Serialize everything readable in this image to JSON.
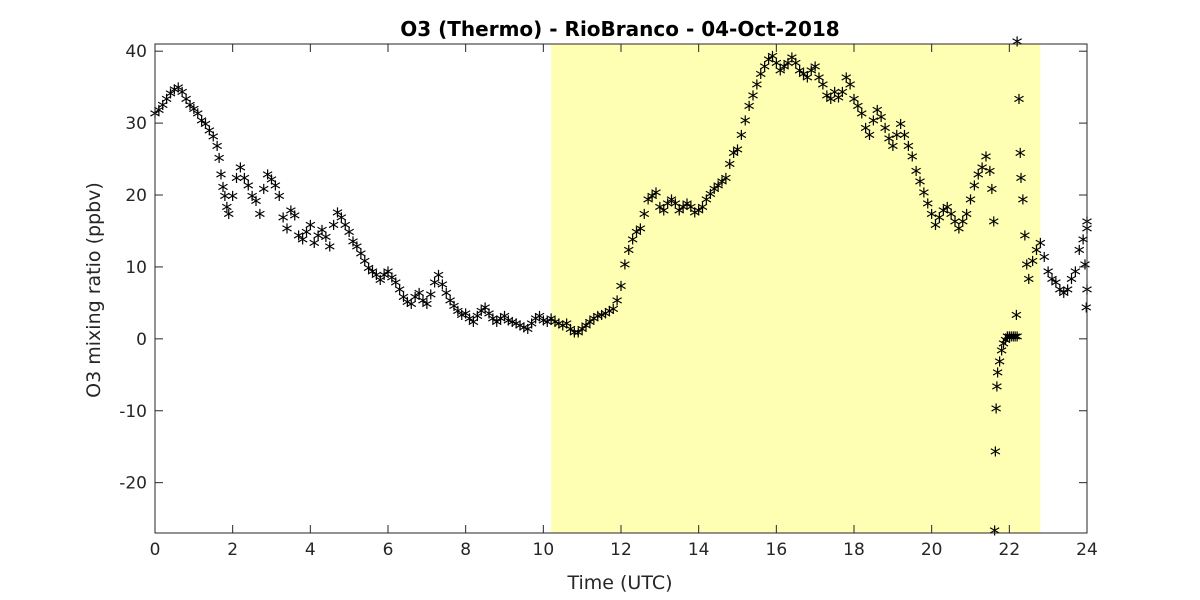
{
  "chart_data": {
    "type": "scatter",
    "title": "O3 (Thermo) - RioBranco - 04-Oct-2018",
    "xlabel": "Time (UTC)",
    "ylabel": "O3 mixing ratio (ppbv)",
    "xlim": [
      0,
      24
    ],
    "ylim": [
      -27,
      41
    ],
    "xticks": [
      0,
      2,
      4,
      6,
      8,
      10,
      12,
      14,
      16,
      18,
      20,
      22,
      24
    ],
    "yticks": [
      -20,
      -10,
      0,
      10,
      20,
      30,
      40
    ],
    "x_tick_labels": [
      "0",
      "2",
      "4",
      "6",
      "8",
      "10",
      "12",
      "14",
      "16",
      "18",
      "20",
      "22",
      "24"
    ],
    "y_tick_labels": [
      "-20",
      "-10",
      "0",
      "10",
      "20",
      "30",
      "40"
    ],
    "grid": false,
    "marker": "*",
    "highlight_span": {
      "x": [
        10.2,
        22.8
      ],
      "color": "#ffffb3"
    },
    "marker_color": "#000000",
    "points": [
      [
        0.0,
        31.0
      ],
      [
        0.1,
        31.5
      ],
      [
        0.2,
        32.2
      ],
      [
        0.3,
        33.0
      ],
      [
        0.4,
        33.8
      ],
      [
        0.5,
        34.3
      ],
      [
        0.6,
        34.6
      ],
      [
        0.7,
        34.0
      ],
      [
        0.8,
        33.0
      ],
      [
        0.9,
        32.2
      ],
      [
        1.0,
        31.6
      ],
      [
        1.1,
        31.0
      ],
      [
        1.2,
        30.0
      ],
      [
        1.3,
        29.5
      ],
      [
        1.4,
        28.6
      ],
      [
        1.5,
        27.8
      ],
      [
        1.6,
        26.5
      ],
      [
        1.65,
        24.8
      ],
      [
        1.7,
        22.5
      ],
      [
        1.75,
        20.8
      ],
      [
        1.8,
        19.5
      ],
      [
        1.85,
        18.0
      ],
      [
        1.9,
        17.0
      ],
      [
        2.0,
        19.5
      ],
      [
        2.1,
        22.0
      ],
      [
        2.2,
        23.5
      ],
      [
        2.3,
        22.0
      ],
      [
        2.4,
        21.0
      ],
      [
        2.5,
        19.5
      ],
      [
        2.6,
        18.8
      ],
      [
        2.7,
        17.0
      ],
      [
        2.8,
        20.5
      ],
      [
        2.9,
        22.5
      ],
      [
        3.0,
        21.8
      ],
      [
        3.1,
        21.0
      ],
      [
        3.2,
        19.5
      ],
      [
        3.3,
        16.5
      ],
      [
        3.4,
        15.0
      ],
      [
        3.5,
        17.5
      ],
      [
        3.6,
        16.8
      ],
      [
        3.7,
        14.0
      ],
      [
        3.8,
        13.5
      ],
      [
        3.9,
        14.5
      ],
      [
        4.0,
        15.5
      ],
      [
        4.1,
        13.0
      ],
      [
        4.2,
        14.0
      ],
      [
        4.3,
        14.8
      ],
      [
        4.4,
        13.8
      ],
      [
        4.5,
        12.5
      ],
      [
        4.6,
        15.5
      ],
      [
        4.7,
        17.2
      ],
      [
        4.8,
        16.5
      ],
      [
        4.9,
        15.5
      ],
      [
        5.0,
        14.5
      ],
      [
        5.1,
        13.2
      ],
      [
        5.2,
        12.5
      ],
      [
        5.3,
        11.5
      ],
      [
        5.4,
        10.5
      ],
      [
        5.5,
        9.5
      ],
      [
        5.6,
        9.0
      ],
      [
        5.7,
        8.5
      ],
      [
        5.8,
        7.8
      ],
      [
        5.9,
        8.5
      ],
      [
        6.0,
        9.0
      ],
      [
        6.1,
        8.2
      ],
      [
        6.2,
        7.5
      ],
      [
        6.3,
        6.5
      ],
      [
        6.4,
        5.5
      ],
      [
        6.5,
        4.8
      ],
      [
        6.6,
        4.5
      ],
      [
        6.7,
        5.5
      ],
      [
        6.8,
        6.0
      ],
      [
        6.9,
        5.0
      ],
      [
        7.0,
        4.5
      ],
      [
        7.1,
        5.8
      ],
      [
        7.2,
        7.5
      ],
      [
        7.3,
        8.5
      ],
      [
        7.4,
        7.2
      ],
      [
        7.5,
        6.0
      ],
      [
        7.6,
        5.0
      ],
      [
        7.7,
        4.2
      ],
      [
        7.8,
        3.5
      ],
      [
        7.9,
        3.0
      ],
      [
        8.0,
        3.2
      ],
      [
        8.1,
        2.5
      ],
      [
        8.2,
        2.0
      ],
      [
        8.3,
        2.8
      ],
      [
        8.4,
        3.5
      ],
      [
        8.5,
        4.0
      ],
      [
        8.6,
        3.2
      ],
      [
        8.7,
        2.5
      ],
      [
        8.8,
        2.0
      ],
      [
        8.9,
        2.5
      ],
      [
        9.0,
        2.8
      ],
      [
        9.1,
        2.2
      ],
      [
        9.2,
        2.0
      ],
      [
        9.3,
        1.8
      ],
      [
        9.4,
        1.5
      ],
      [
        9.5,
        1.2
      ],
      [
        9.6,
        1.0
      ],
      [
        9.7,
        1.8
      ],
      [
        9.8,
        2.5
      ],
      [
        9.9,
        2.8
      ],
      [
        10.0,
        2.2
      ],
      [
        10.1,
        2.0
      ],
      [
        10.2,
        2.5
      ],
      [
        10.3,
        2.0
      ],
      [
        10.4,
        1.8
      ],
      [
        10.5,
        1.5
      ],
      [
        10.6,
        1.8
      ],
      [
        10.7,
        1.0
      ],
      [
        10.8,
        0.5
      ],
      [
        10.9,
        0.5
      ],
      [
        11.0,
        1.0
      ],
      [
        11.1,
        1.5
      ],
      [
        11.2,
        2.0
      ],
      [
        11.3,
        2.5
      ],
      [
        11.4,
        2.8
      ],
      [
        11.5,
        3.0
      ],
      [
        11.6,
        3.2
      ],
      [
        11.7,
        3.5
      ],
      [
        11.8,
        3.8
      ],
      [
        11.9,
        5.0
      ],
      [
        12.0,
        7.0
      ],
      [
        12.1,
        10.0
      ],
      [
        12.2,
        12.0
      ],
      [
        12.3,
        13.5
      ],
      [
        12.4,
        14.5
      ],
      [
        12.5,
        15.0
      ],
      [
        12.6,
        17.0
      ],
      [
        12.7,
        19.0
      ],
      [
        12.8,
        19.5
      ],
      [
        12.9,
        20.0
      ],
      [
        13.0,
        18.0
      ],
      [
        13.1,
        17.5
      ],
      [
        13.2,
        18.5
      ],
      [
        13.3,
        19.0
      ],
      [
        13.4,
        18.5
      ],
      [
        13.5,
        17.5
      ],
      [
        13.6,
        18.0
      ],
      [
        13.7,
        18.5
      ],
      [
        13.8,
        18.0
      ],
      [
        13.9,
        17.2
      ],
      [
        14.0,
        17.5
      ],
      [
        14.1,
        18.0
      ],
      [
        14.2,
        19.0
      ],
      [
        14.3,
        19.8
      ],
      [
        14.4,
        20.5
      ],
      [
        14.5,
        21.0
      ],
      [
        14.6,
        21.5
      ],
      [
        14.7,
        22.0
      ],
      [
        14.8,
        24.0
      ],
      [
        14.9,
        25.5
      ],
      [
        15.0,
        26.0
      ],
      [
        15.1,
        28.0
      ],
      [
        15.2,
        30.0
      ],
      [
        15.3,
        32.0
      ],
      [
        15.4,
        33.5
      ],
      [
        15.5,
        35.0
      ],
      [
        15.6,
        36.5
      ],
      [
        15.7,
        37.5
      ],
      [
        15.8,
        38.5
      ],
      [
        15.9,
        39.0
      ],
      [
        16.0,
        38.0
      ],
      [
        16.1,
        37.0
      ],
      [
        16.2,
        37.5
      ],
      [
        16.3,
        38.0
      ],
      [
        16.4,
        38.8
      ],
      [
        16.5,
        38.0
      ],
      [
        16.6,
        37.0
      ],
      [
        16.7,
        36.5
      ],
      [
        16.8,
        36.0
      ],
      [
        16.9,
        37.0
      ],
      [
        17.0,
        37.5
      ],
      [
        17.1,
        36.0
      ],
      [
        17.2,
        35.0
      ],
      [
        17.3,
        33.5
      ],
      [
        17.4,
        33.0
      ],
      [
        17.5,
        34.0
      ],
      [
        17.6,
        33.2
      ],
      [
        17.7,
        34.0
      ],
      [
        17.8,
        36.0
      ],
      [
        17.9,
        35.0
      ],
      [
        18.0,
        33.0
      ],
      [
        18.1,
        32.0
      ],
      [
        18.2,
        31.0
      ],
      [
        18.3,
        29.0
      ],
      [
        18.4,
        28.0
      ],
      [
        18.5,
        30.0
      ],
      [
        18.6,
        31.5
      ],
      [
        18.7,
        30.5
      ],
      [
        18.8,
        29.0
      ],
      [
        18.9,
        27.5
      ],
      [
        19.0,
        26.5
      ],
      [
        19.1,
        28.0
      ],
      [
        19.2,
        29.5
      ],
      [
        19.3,
        28.0
      ],
      [
        19.4,
        26.5
      ],
      [
        19.5,
        25.0
      ],
      [
        19.6,
        23.0
      ],
      [
        19.7,
        21.5
      ],
      [
        19.8,
        20.0
      ],
      [
        19.9,
        18.5
      ],
      [
        20.0,
        17.0
      ],
      [
        20.1,
        15.5
      ],
      [
        20.2,
        16.5
      ],
      [
        20.3,
        17.5
      ],
      [
        20.4,
        18.0
      ],
      [
        20.5,
        17.0
      ],
      [
        20.6,
        16.0
      ],
      [
        20.7,
        15.0
      ],
      [
        20.8,
        16.0
      ],
      [
        20.9,
        17.0
      ],
      [
        21.0,
        19.0
      ],
      [
        21.1,
        21.0
      ],
      [
        21.2,
        22.5
      ],
      [
        21.3,
        23.5
      ],
      [
        21.4,
        25.0
      ],
      [
        21.5,
        23.0
      ],
      [
        21.55,
        20.5
      ],
      [
        21.6,
        16.0
      ],
      [
        21.62,
        -27.0
      ],
      [
        21.64,
        -16.0
      ],
      [
        21.66,
        -10.0
      ],
      [
        21.68,
        -7.0
      ],
      [
        21.7,
        -5.0
      ],
      [
        21.75,
        -3.5
      ],
      [
        21.8,
        -2.0
      ],
      [
        21.85,
        -1.0
      ],
      [
        21.9,
        -0.5
      ],
      [
        21.95,
        0.0
      ],
      [
        22.0,
        0.0
      ],
      [
        22.05,
        0.0
      ],
      [
        22.1,
        0.0
      ],
      [
        22.15,
        0.0
      ],
      [
        22.2,
        0.0
      ],
      [
        22.18,
        3.0
      ],
      [
        22.2,
        41.0
      ],
      [
        22.25,
        33.0
      ],
      [
        22.28,
        25.5
      ],
      [
        22.3,
        22.0
      ],
      [
        22.35,
        19.0
      ],
      [
        22.4,
        14.0
      ],
      [
        22.45,
        10.0
      ],
      [
        22.5,
        8.0
      ],
      [
        22.6,
        10.5
      ],
      [
        22.7,
        12.0
      ],
      [
        22.8,
        13.0
      ],
      [
        22.9,
        11.0
      ],
      [
        23.0,
        9.0
      ],
      [
        23.1,
        8.0
      ],
      [
        23.2,
        7.5
      ],
      [
        23.3,
        6.5
      ],
      [
        23.4,
        6.0
      ],
      [
        23.5,
        6.5
      ],
      [
        23.6,
        8.0
      ],
      [
        23.7,
        9.0
      ],
      [
        23.8,
        12.0
      ],
      [
        23.9,
        13.5
      ],
      [
        24.0,
        15.0
      ],
      [
        23.95,
        10.0
      ],
      [
        24.0,
        6.5
      ],
      [
        23.98,
        4.0
      ],
      [
        24.0,
        16.0
      ]
    ]
  }
}
